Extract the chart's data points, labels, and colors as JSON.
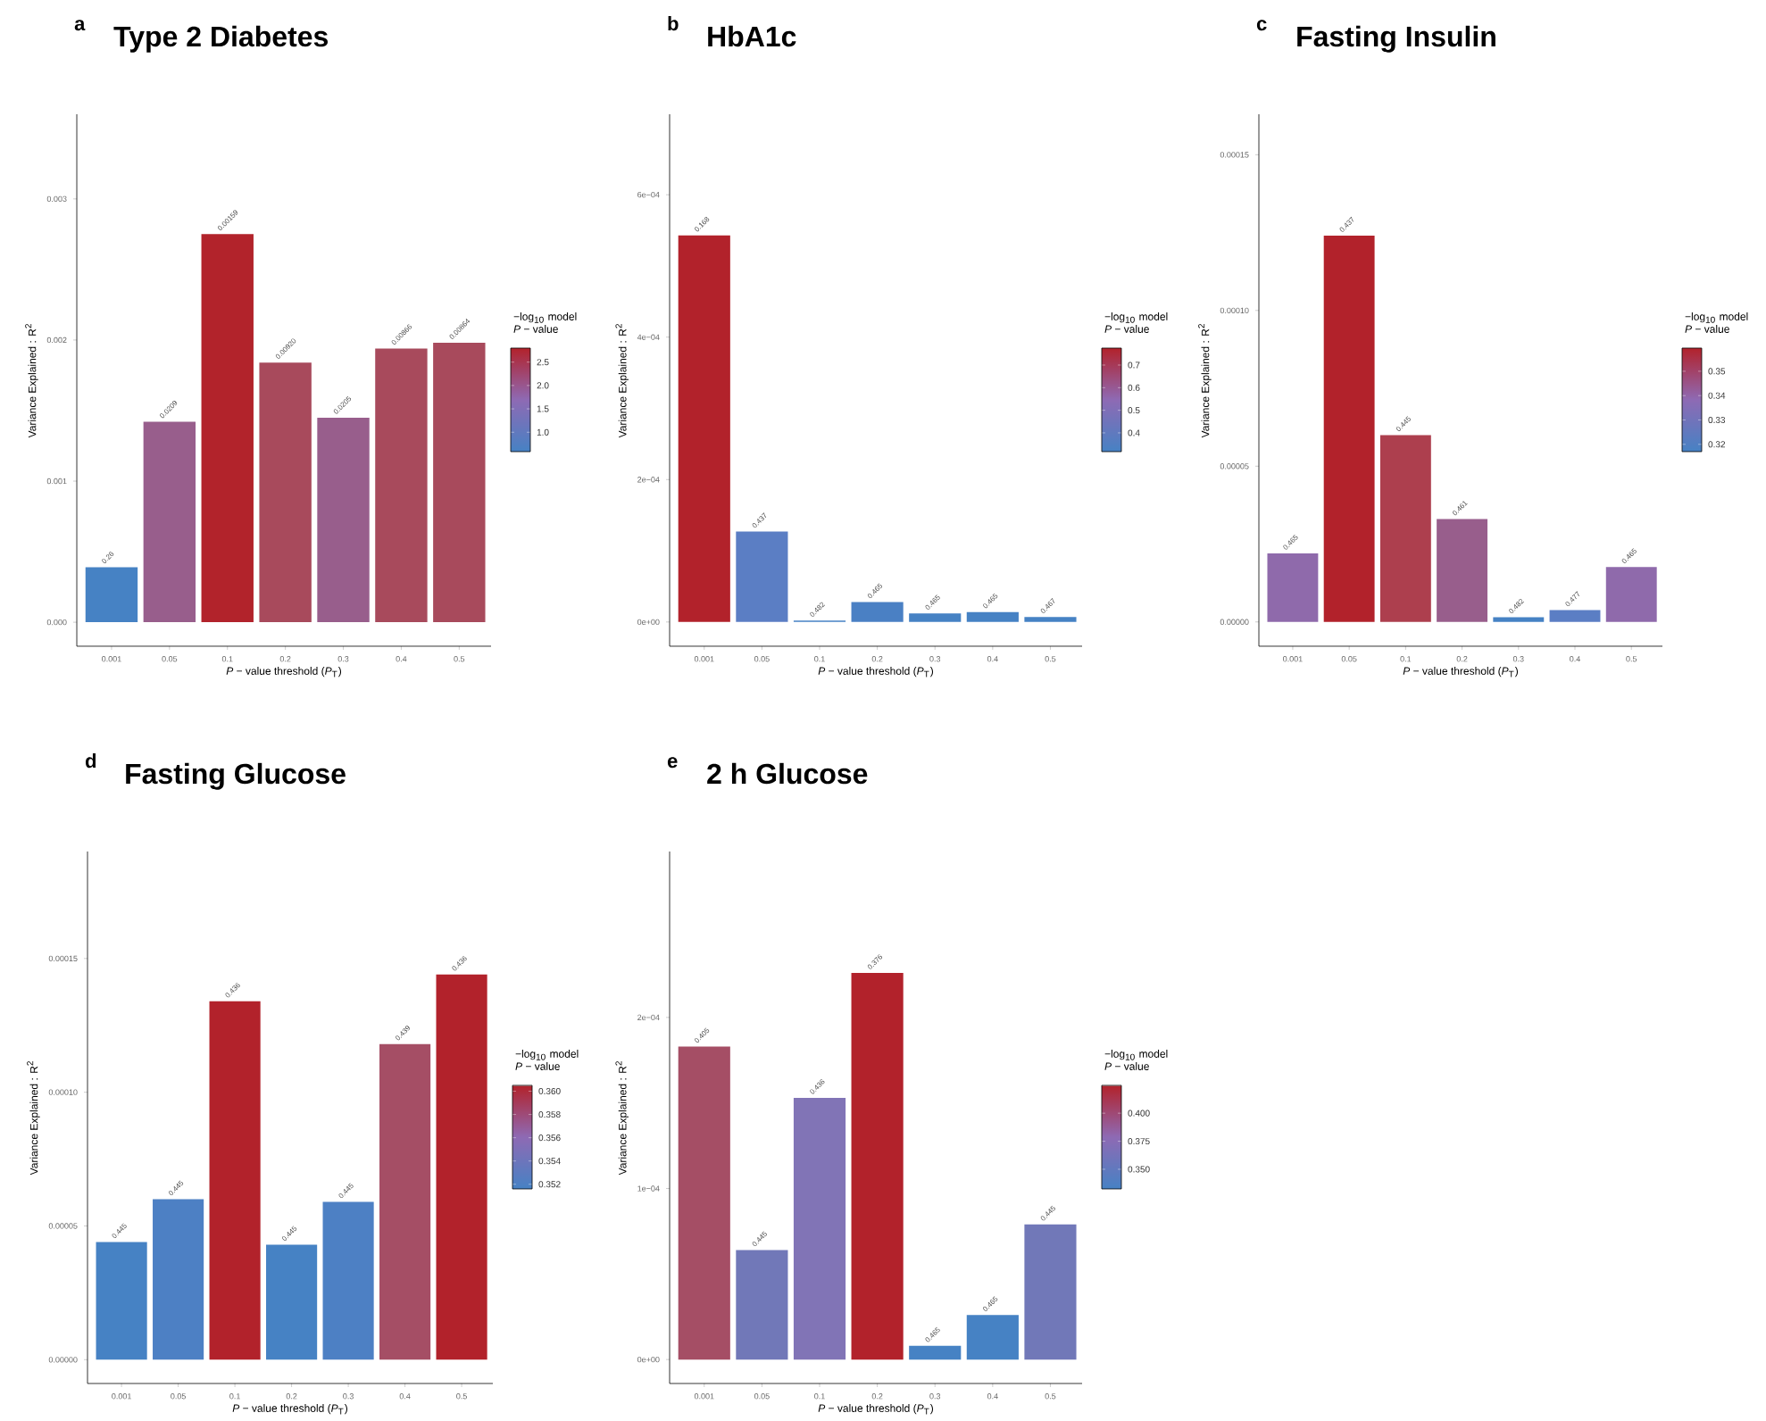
{
  "chart_data": [
    {
      "type": "bar",
      "title": "Type 2 Diabetes",
      "xlabel": "*P* − value threshold (*P*$_{T}$)",
      "ylabel": "Variance Explained : R$^{2}$",
      "clabel": "−log$_{10}$ model *P* − value",
      "categories": [
        "0.001",
        "0.05",
        "0.1",
        "0.2",
        "0.3",
        "0.4",
        "0.5"
      ],
      "values": [
        0.00039,
        0.00142,
        0.00275,
        0.00184,
        0.00145,
        0.00194,
        0.00198
      ],
      "colors": [
        "#4682c4",
        "#985e8c",
        "#b2232b",
        "#a84a5c",
        "#985e8c",
        "#a84a5c",
        "#a84a5c"
      ],
      "annotations": [
        "a",
        {
          "text": "0.26",
          "x": "0.001",
          "y": 0.00039
        },
        {
          "text": "0.0209",
          "x": "0.05",
          "y": 0.00142
        },
        {
          "text": "0.00159",
          "x": "0.1",
          "y": 0.00275
        },
        {
          "text": "0.00920",
          "x": "0.2",
          "y": 0.00184
        },
        {
          "text": "0.0205",
          "x": "0.3",
          "y": 0.00145
        },
        {
          "text": "0.00866",
          "x": "0.4",
          "y": 0.00194
        },
        {
          "text": "0.00864",
          "x": "0.5",
          "y": 0.00198
        }
      ],
      "ylim": [
        -0.00017,
        0.0036
      ],
      "yticks": [
        {
          "value": 0,
          "label": "0.000"
        },
        {
          "value": 0.001,
          "label": "0.001"
        },
        {
          "value": 0.002,
          "label": "0.002"
        },
        {
          "value": 0.003,
          "label": "0.003"
        }
      ],
      "clim": [
        0.585,
        2.8
      ],
      "cticks": [
        {
          "value": 1.0,
          "label": "1.0"
        },
        1.5,
        {
          "value": 2.0,
          "label": "2.0"
        },
        2.5
      ]
    },
    {
      "type": "bar",
      "title": "HbA1c",
      "xlabel": "*P* − value threshold (*P*$_{T}$)",
      "ylabel": "Variance Explained : R$^{2}$",
      "clabel": "−log$_{10}$ model *P* − value",
      "categories": [
        "0.001",
        "0.05",
        "0.1",
        "0.2",
        "0.3",
        "0.4",
        "0.5"
      ],
      "values": [
        0.000543,
        0.000127,
        2e-06,
        2.8e-05,
        1.2e-05,
        1.4e-05,
        7e-06
      ],
      "colors": [
        "#b2222b",
        "#5b7ec4",
        "#4682c4",
        "#4a80c4",
        "#4682c4",
        "#4682c4",
        "#4682c4"
      ],
      "annotations": [
        "b",
        {
          "text": "0.168",
          "x": "0.001",
          "y": 0.000543
        },
        {
          "text": "0.437",
          "x": "0.05",
          "y": 0.000127
        },
        {
          "text": "0.482",
          "x": "0.1",
          "y": 2e-06
        },
        {
          "text": "0.465",
          "x": "0.2",
          "y": 2.8e-05
        },
        {
          "text": "0.465",
          "x": "0.3",
          "y": 1.2e-05
        },
        {
          "text": "0.465",
          "x": "0.4",
          "y": 1.4e-05
        },
        {
          "text": "0.467",
          "x": "0.5",
          "y": 7e-06
        }
      ],
      "ylim": [
        -3.4e-05,
        0.000713
      ],
      "yticks": [
        {
          "value": 0,
          "label": "0e+00"
        },
        {
          "value": 0.0002,
          "label": "2e−04"
        },
        {
          "value": 0.0004,
          "label": "4e−04"
        },
        {
          "value": 0.0006,
          "label": "6e−04"
        }
      ],
      "clim": [
        0.317,
        0.775
      ],
      "cticks": [
        0.4,
        0.5,
        0.6,
        0.7
      ]
    },
    {
      "type": "bar",
      "title": "Fasting Insulin",
      "xlabel": "*P* − value threshold (*P*$_{T}$)",
      "ylabel": "Variance Explained : R$^{2}$",
      "clabel": "−log$_{10}$ model *P* − value",
      "categories": [
        "0.001",
        "0.05",
        "0.1",
        "0.2",
        "0.3",
        "0.4",
        "0.5"
      ],
      "values": [
        2.2e-05,
        0.000124,
        6e-05,
        3.3e-05,
        1.5e-06,
        3.8e-06,
        1.76e-05
      ],
      "colors": [
        "#8f6aab",
        "#b2222b",
        "#ad3f4e",
        "#985e8c",
        "#4682c4",
        "#5b7ec4",
        "#8f6aab"
      ],
      "annotations": [
        "c",
        {
          "text": "0.465",
          "x": "0.001",
          "y": 2.2e-05
        },
        {
          "text": "0.437",
          "x": "0.05",
          "y": 0.000124
        },
        {
          "text": "0.445",
          "x": "0.1",
          "y": 6e-05
        },
        {
          "text": "0.461",
          "x": "0.2",
          "y": 3.3e-05
        },
        {
          "text": "0.482",
          "x": "0.3",
          "y": 1.5e-06
        },
        {
          "text": "0.477",
          "x": "0.4",
          "y": 3.8e-06
        },
        {
          "text": "0.465",
          "x": "0.5",
          "y": 1.76e-05
        }
      ],
      "ylim": [
        -7.8e-06,
        0.000163
      ],
      "yticks": [
        {
          "value": 0,
          "label": "0.00000"
        },
        {
          "value": 5e-05,
          "label": "0.00005"
        },
        {
          "value": 0.0001,
          "label": "0.00010"
        },
        {
          "value": 0.00015,
          "label": "0.00015"
        }
      ],
      "clim": [
        0.317,
        0.3595
      ],
      "cticks": [
        0.32,
        0.33,
        0.34,
        0.35
      ]
    },
    {
      "type": "bar",
      "title": "Fasting Glucose",
      "xlabel": "*P* − value threshold (*P*$_{T}$)",
      "ylabel": "Variance Explained : R$^{2}$",
      "clabel": "−log$_{10}$ model *P* − value",
      "categories": [
        "0.001",
        "0.05",
        "0.1",
        "0.2",
        "0.3",
        "0.4",
        "0.5"
      ],
      "values": [
        4.4e-05,
        6e-05,
        0.000134,
        4.3e-05,
        5.9e-05,
        0.000118,
        0.000144
      ],
      "colors": [
        "#4682c4",
        "#4d80c4",
        "#b2222b",
        "#4682c4",
        "#4d80c4",
        "#a54e65",
        "#b2222b"
      ],
      "annotations": [
        "d",
        {
          "text": "0.445",
          "x": "0.001",
          "y": 4.4e-05
        },
        {
          "text": "0.445",
          "x": "0.05",
          "y": 6e-05
        },
        {
          "text": "0.436",
          "x": "0.1",
          "y": 0.000134
        },
        {
          "text": "0.445",
          "x": "0.2",
          "y": 4.3e-05
        },
        {
          "text": "0.445",
          "x": "0.3",
          "y": 5.9e-05
        },
        {
          "text": "0.439",
          "x": "0.4",
          "y": 0.000118
        },
        {
          "text": "0.436",
          "x": "0.5",
          "y": 0.000144
        }
      ],
      "ylim": [
        -8.9e-06,
        0.00019
      ],
      "yticks": [
        {
          "value": 0,
          "label": "0.00000"
        },
        {
          "value": 5e-05,
          "label": "0.00005"
        },
        {
          "value": 0.0001,
          "label": "0.00010"
        },
        {
          "value": 0.00015,
          "label": "0.00015"
        }
      ],
      "clim": [
        0.3516,
        0.3605
      ],
      "cticks": [
        0.352,
        0.354,
        0.356,
        0.358,
        {
          "value": 0.36,
          "label": "0.360"
        }
      ]
    },
    {
      "type": "bar",
      "title": "2 h Glucose",
      "xlabel": "*P* − value threshold (*P*$_{T}$)",
      "ylabel": "Variance Explained : R$^{2}$",
      "clabel": "−log$_{10}$ model *P* − value",
      "categories": [
        "0.001",
        "0.05",
        "0.1",
        "0.2",
        "0.3",
        "0.4",
        "0.5"
      ],
      "values": [
        0.000183,
        6.4e-05,
        0.000153,
        0.000226,
        8e-06,
        2.6e-05,
        7.9e-05
      ],
      "colors": [
        "#a54e65",
        "#7178b8",
        "#8174b6",
        "#b2222b",
        "#4682c4",
        "#4682c4",
        "#7178b8"
      ],
      "annotations": [
        "e",
        {
          "text": "0.405",
          "x": "0.001",
          "y": 0.000183
        },
        {
          "text": "0.445",
          "x": "0.05",
          "y": 6.4e-05
        },
        {
          "text": "0.436",
          "x": "0.1",
          "y": 0.000153
        },
        {
          "text": "0.376",
          "x": "0.2",
          "y": 0.000226
        },
        {
          "text": "0.465",
          "x": "0.3",
          "y": 8e-06
        },
        {
          "text": "0.465",
          "x": "0.4",
          "y": 2.6e-05
        },
        {
          "text": "0.445",
          "x": "0.5",
          "y": 7.9e-05
        }
      ],
      "ylim": [
        -1.4e-05,
        0.000297
      ],
      "yticks": [
        {
          "value": 0,
          "label": "0e+00"
        },
        {
          "value": 0.0001,
          "label": "1e−04"
        },
        {
          "value": 0.0002,
          "label": "2e−04"
        }
      ],
      "clim": [
        0.3325,
        0.4248
      ],
      "cticks": [
        {
          "value": 0.35,
          "label": "0.350"
        },
        {
          "value": 0.375,
          "label": "0.375"
        },
        {
          "value": 0.4,
          "label": "0.400"
        }
      ]
    }
  ]
}
